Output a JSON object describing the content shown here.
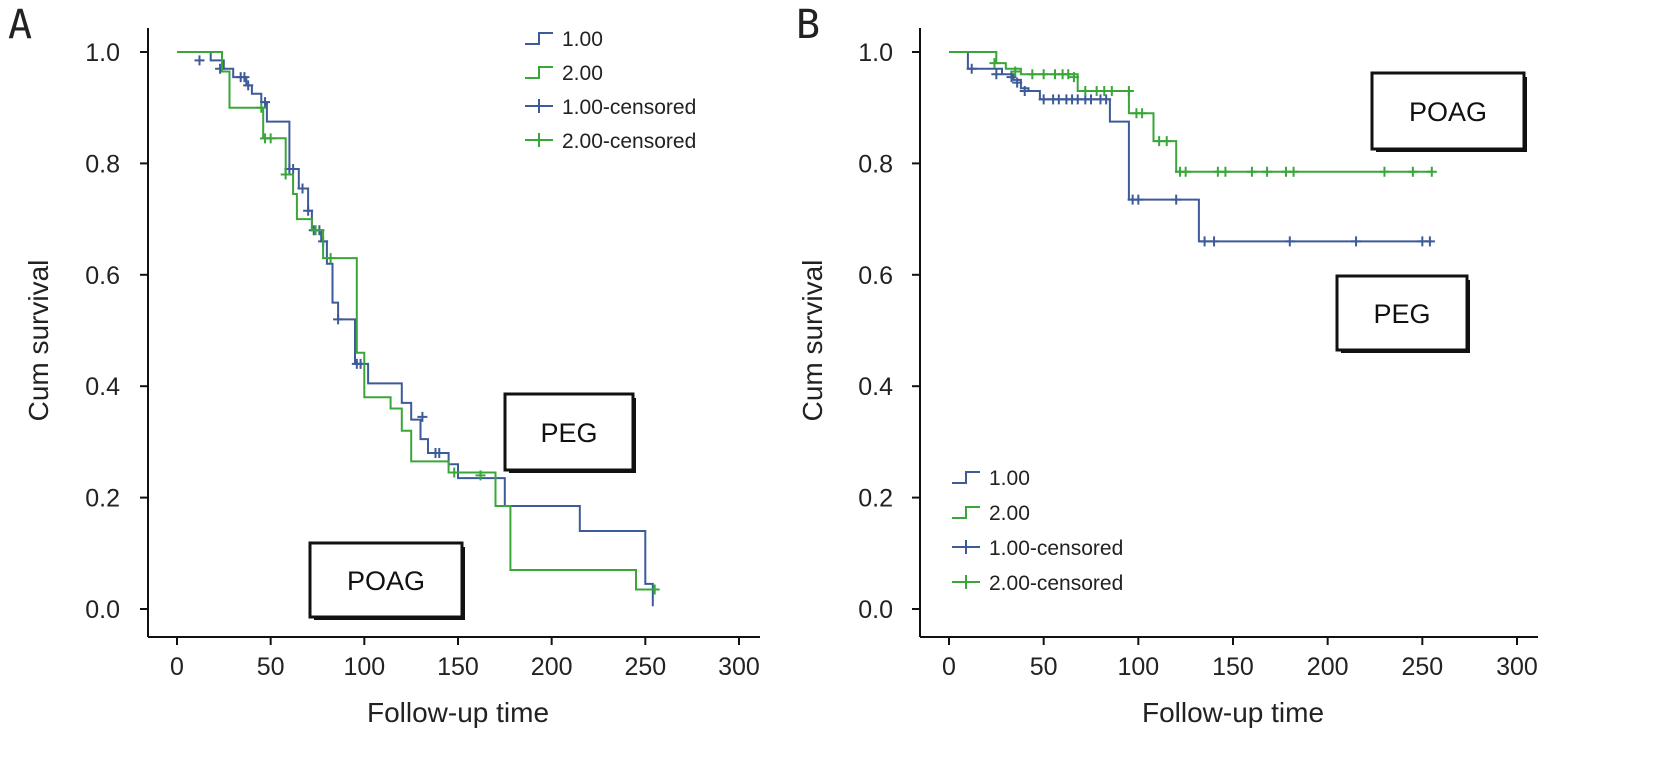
{
  "colors": {
    "group1": "#3d5a99",
    "group2": "#3aa63a",
    "axis": "#111111",
    "box": "#111111"
  },
  "chart_data": [
    {
      "panel": "A",
      "type": "line",
      "subtype": "kaplan-meier",
      "xlabel": "Follow-up time",
      "ylabel": "Cum survival",
      "xlim": [
        0,
        300
      ],
      "ylim": [
        0,
        1
      ],
      "xticks": [
        "0",
        "50",
        "100",
        "150",
        "200",
        "250",
        "300"
      ],
      "yticks": [
        "0.0",
        "0.2",
        "0.4",
        "0.6",
        "0.8",
        "1.0"
      ],
      "grid": false,
      "legend": {
        "placement": "top-right",
        "entries": [
          "1.00",
          "2.00",
          "1.00-censored",
          "2.00-censored"
        ]
      },
      "annotations": [
        {
          "text": "PEG",
          "x": 128,
          "y": 0.31
        },
        {
          "text": "POAG",
          "x": 56,
          "y": 0.05
        }
      ],
      "series": [
        {
          "legend_index": 0,
          "color_key": "group1",
          "steps": [
            [
              0,
              1.0
            ],
            [
              18,
              0.985
            ],
            [
              25,
              0.97
            ],
            [
              30,
              0.955
            ],
            [
              37,
              0.94
            ],
            [
              40,
              0.925
            ],
            [
              45,
              0.91
            ],
            [
              48,
              0.875
            ],
            [
              60,
              0.79
            ],
            [
              65,
              0.755
            ],
            [
              70,
              0.715
            ],
            [
              72,
              0.68
            ],
            [
              77,
              0.66
            ],
            [
              80,
              0.62
            ],
            [
              83,
              0.55
            ],
            [
              86,
              0.52
            ],
            [
              95,
              0.44
            ],
            [
              102,
              0.405
            ],
            [
              120,
              0.37
            ],
            [
              125,
              0.34
            ],
            [
              130,
              0.305
            ],
            [
              134,
              0.28
            ],
            [
              145,
              0.26
            ],
            [
              150,
              0.235
            ],
            [
              175,
              0.185
            ],
            [
              215,
              0.14
            ],
            [
              250,
              0.045
            ],
            [
              254,
              0.005
            ]
          ],
          "end_x": 254,
          "censored": [
            [
              12,
              0.985
            ],
            [
              23,
              0.97
            ],
            [
              34,
              0.955
            ],
            [
              36,
              0.955
            ],
            [
              38,
              0.94
            ],
            [
              47,
              0.91
            ],
            [
              60,
              0.79
            ],
            [
              62,
              0.79
            ],
            [
              67,
              0.755
            ],
            [
              70,
              0.715
            ],
            [
              73,
              0.68
            ],
            [
              76,
              0.68
            ],
            [
              78,
              0.66
            ],
            [
              86,
              0.52
            ],
            [
              96,
              0.44
            ],
            [
              98,
              0.44
            ],
            [
              131,
              0.345
            ],
            [
              138,
              0.28
            ],
            [
              140,
              0.28
            ]
          ]
        },
        {
          "legend_index": 1,
          "color_key": "group2",
          "steps": [
            [
              0,
              1.0
            ],
            [
              24,
              0.965
            ],
            [
              28,
              0.9
            ],
            [
              40,
              0.9
            ],
            [
              46,
              0.845
            ],
            [
              58,
              0.78
            ],
            [
              62,
              0.745
            ],
            [
              64,
              0.7
            ],
            [
              72,
              0.68
            ],
            [
              78,
              0.63
            ],
            [
              92,
              0.63
            ],
            [
              96,
              0.46
            ],
            [
              100,
              0.38
            ],
            [
              114,
              0.36
            ],
            [
              120,
              0.32
            ],
            [
              125,
              0.265
            ],
            [
              145,
              0.245
            ],
            [
              170,
              0.185
            ],
            [
              178,
              0.07
            ],
            [
              245,
              0.035
            ],
            [
              255,
              0.035
            ]
          ],
          "end_x": 255,
          "censored": [
            [
              45,
              0.9
            ],
            [
              47,
              0.845
            ],
            [
              50,
              0.845
            ],
            [
              58,
              0.78
            ],
            [
              74,
              0.68
            ],
            [
              82,
              0.63
            ],
            [
              148,
              0.245
            ],
            [
              162,
              0.24
            ],
            [
              255,
              0.035
            ]
          ]
        }
      ]
    },
    {
      "panel": "B",
      "type": "line",
      "subtype": "kaplan-meier",
      "xlabel": "Follow-up time",
      "ylabel": "Cum survival",
      "xlim": [
        0,
        300
      ],
      "ylim": [
        0,
        1
      ],
      "xticks": [
        "0",
        "50",
        "100",
        "150",
        "200",
        "250",
        "300"
      ],
      "yticks": [
        "0.0",
        "0.2",
        "0.4",
        "0.6",
        "0.8",
        "1.0"
      ],
      "grid": false,
      "legend": {
        "placement": "bottom-left",
        "entries": [
          "1.00",
          "2.00",
          "1.00-censored",
          "2.00-censored"
        ]
      },
      "annotations": [
        {
          "text": "POAG",
          "x": 214,
          "y": 0.89
        },
        {
          "text": "PEG",
          "x": 200,
          "y": 0.53
        }
      ],
      "series": [
        {
          "legend_index": 0,
          "color_key": "group1",
          "steps": [
            [
              0,
              1.0
            ],
            [
              10,
              0.97
            ],
            [
              28,
              0.96
            ],
            [
              34,
              0.95
            ],
            [
              38,
              0.935
            ],
            [
              42,
              0.93
            ],
            [
              48,
              0.915
            ],
            [
              85,
              0.875
            ],
            [
              95,
              0.735
            ],
            [
              132,
              0.66
            ],
            [
              255,
              0.66
            ]
          ],
          "end_x": 255,
          "censored": [
            [
              12,
              0.97
            ],
            [
              25,
              0.96
            ],
            [
              33,
              0.955
            ],
            [
              36,
              0.945
            ],
            [
              40,
              0.93
            ],
            [
              50,
              0.915
            ],
            [
              55,
              0.915
            ],
            [
              58,
              0.915
            ],
            [
              62,
              0.915
            ],
            [
              65,
              0.915
            ],
            [
              68,
              0.915
            ],
            [
              72,
              0.915
            ],
            [
              75,
              0.915
            ],
            [
              80,
              0.915
            ],
            [
              83,
              0.915
            ],
            [
              97,
              0.735
            ],
            [
              100,
              0.735
            ],
            [
              120,
              0.735
            ],
            [
              135,
              0.66
            ],
            [
              140,
              0.66
            ],
            [
              180,
              0.66
            ],
            [
              215,
              0.66
            ],
            [
              250,
              0.66
            ],
            [
              254,
              0.66
            ]
          ]
        },
        {
          "legend_index": 1,
          "color_key": "group2",
          "steps": [
            [
              0,
              1.0
            ],
            [
              25,
              0.98
            ],
            [
              30,
              0.97
            ],
            [
              38,
              0.96
            ],
            [
              68,
              0.93
            ],
            [
              95,
              0.89
            ],
            [
              108,
              0.84
            ],
            [
              120,
              0.785
            ],
            [
              255,
              0.785
            ]
          ],
          "end_x": 255,
          "censored": [
            [
              24,
              0.98
            ],
            [
              35,
              0.965
            ],
            [
              44,
              0.96
            ],
            [
              50,
              0.96
            ],
            [
              56,
              0.96
            ],
            [
              60,
              0.96
            ],
            [
              63,
              0.96
            ],
            [
              66,
              0.955
            ],
            [
              72,
              0.93
            ],
            [
              78,
              0.93
            ],
            [
              82,
              0.93
            ],
            [
              86,
              0.93
            ],
            [
              95,
              0.93
            ],
            [
              99,
              0.89
            ],
            [
              102,
              0.89
            ],
            [
              111,
              0.84
            ],
            [
              115,
              0.84
            ],
            [
              122,
              0.785
            ],
            [
              125,
              0.785
            ],
            [
              142,
              0.785
            ],
            [
              146,
              0.785
            ],
            [
              160,
              0.785
            ],
            [
              168,
              0.785
            ],
            [
              178,
              0.785
            ],
            [
              182,
              0.785
            ],
            [
              230,
              0.785
            ],
            [
              245,
              0.785
            ],
            [
              255,
              0.785
            ]
          ]
        }
      ]
    }
  ]
}
